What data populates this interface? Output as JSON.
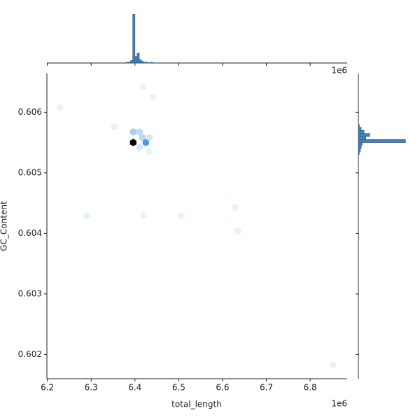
{
  "chart_data": {
    "type": "hexbin",
    "x_label": "total_length",
    "y_label": "GC_Content",
    "x_offset": "1e6",
    "xlim": [
      6199000,
      6884500
    ],
    "ylim": [
      0.6016,
      0.60664
    ],
    "xticks": [
      {
        "value": 6200000,
        "label": "6.2"
      },
      {
        "value": 6300000,
        "label": "6.3"
      },
      {
        "value": 6400000,
        "label": "6.4"
      },
      {
        "value": 6500000,
        "label": "6.5"
      },
      {
        "value": 6600000,
        "label": "6.6"
      },
      {
        "value": 6700000,
        "label": "6.7"
      },
      {
        "value": 6800000,
        "label": "6.8"
      }
    ],
    "yticks": [
      0.602,
      0.603,
      0.604,
      0.605,
      0.606
    ],
    "x": [
      6396000,
      6396000,
      6410500,
      6417000,
      6425000,
      6410500,
      6433000,
      6433000,
      6228700,
      6418500,
      6441000,
      6353000,
      6291000,
      6420000,
      6506000,
      6629000,
      6635000,
      6852000
    ],
    "y": [
      0.6055,
      0.605676,
      0.605676,
      0.605584,
      0.6055,
      0.605422,
      0.605584,
      0.605353,
      0.606081,
      0.606416,
      0.606254,
      0.605757,
      0.60429,
      0.60429,
      0.60429,
      0.604428,
      0.604035,
      0.601827
    ],
    "values": [
      40,
      8,
      5,
      6,
      18,
      3,
      3,
      1,
      1,
      1,
      1,
      1,
      1,
      1,
      1,
      1,
      1,
      1
    ],
    "x_hist": {
      "bins": [
        6380000,
        6385000,
        6390000,
        6395000,
        6400000,
        6405000,
        6410000,
        6415000,
        6420000,
        6425000,
        6430000,
        6435000,
        6440000
      ],
      "counts": [
        1,
        1,
        3,
        60,
        8,
        12,
        4,
        2,
        1,
        1,
        0,
        1
      ],
      "ylim": [
        0,
        62
      ],
      "color": "#4682b4"
    },
    "y_hist": {
      "bins": [
        0.6053,
        0.60535,
        0.6054,
        0.60545,
        0.6055,
        0.60555,
        0.6056,
        0.60565,
        0.6057,
        0.60575,
        0.6058
      ],
      "counts": [
        1,
        2,
        3,
        4,
        50,
        8,
        12,
        6,
        3,
        1
      ],
      "xlim": [
        0,
        52
      ],
      "color": "#4682b4"
    }
  }
}
